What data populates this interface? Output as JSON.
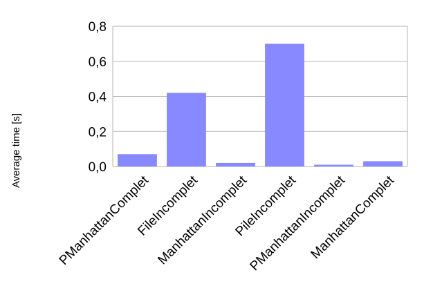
{
  "chart_data": {
    "type": "bar",
    "categories": [
      "PManhattanComplet",
      "FileIncomplet",
      "ManhattanIncomplet",
      "PileIncomplet",
      "PManhattanIncomplet",
      "ManhattanComplet"
    ],
    "values": [
      0.07,
      0.42,
      0.02,
      0.7,
      0.01,
      0.03
    ],
    "title": "",
    "xlabel": "",
    "ylabel": "Average time [s]",
    "ylim": [
      0,
      0.8
    ],
    "yticks": [
      "0,0",
      "0,2",
      "0,4",
      "0,6",
      "0,8"
    ],
    "grid": true,
    "bar_color": "#8888ff",
    "grid_color": "#b3b3b3"
  }
}
